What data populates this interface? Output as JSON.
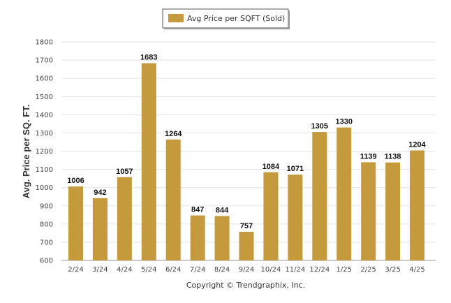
{
  "chart_data": {
    "type": "bar",
    "categories": [
      "2/24",
      "3/24",
      "4/24",
      "5/24",
      "6/24",
      "7/24",
      "8/24",
      "9/24",
      "10/24",
      "11/24",
      "12/24",
      "1/25",
      "2/25",
      "3/25",
      "4/25"
    ],
    "series": [
      {
        "name": "Avg Price per SQFT (Sold)",
        "values": [
          1006,
          942,
          1057,
          1683,
          1264,
          847,
          844,
          757,
          1084,
          1071,
          1305,
          1330,
          1139,
          1138,
          1204
        ]
      }
    ],
    "ylabel": "Avg. Price per SQ. FT.",
    "xlabel": "",
    "ylim": [
      600,
      1800
    ],
    "yticks": [
      600,
      700,
      800,
      900,
      1000,
      1100,
      1200,
      1300,
      1400,
      1500,
      1600,
      1700,
      1800
    ],
    "grid": true,
    "legend": "top-center",
    "data_labels": true,
    "bar_color": "#c49a3d",
    "copyright": "Copyright © Trendgraphix, Inc."
  }
}
